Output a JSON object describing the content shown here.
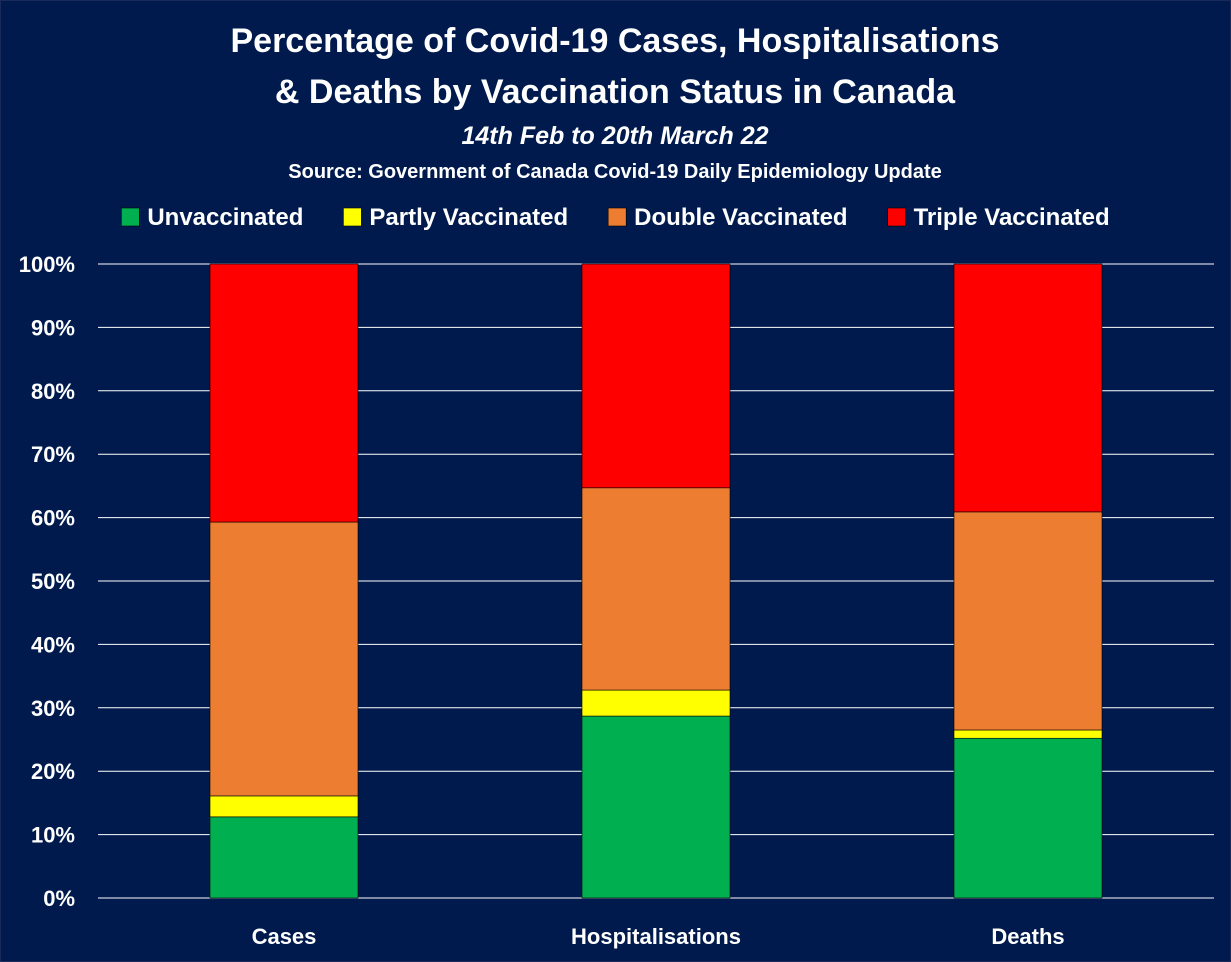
{
  "chart_data": {
    "type": "bar",
    "stacked": true,
    "title_lines": [
      "Percentage of Covid-19 Cases, Hospitalisations",
      "& Deaths by Vaccination Status in Canada"
    ],
    "subtitle": "14th Feb to 20th March 22",
    "source": "Source: Government of Canada  Covid-19 Daily Epidemiology Update",
    "categories": [
      "Cases",
      "Hospitalisations",
      "Deaths"
    ],
    "series": [
      {
        "name": "Unvaccinated",
        "color": "#00b050",
        "values": [
          12.8,
          28.7,
          25.2
        ]
      },
      {
        "name": "Partly Vaccinated",
        "color": "#ffff00",
        "values": [
          3.3,
          4.1,
          1.3
        ]
      },
      {
        "name": "Double Vaccinated",
        "color": "#ed7d31",
        "values": [
          43.2,
          31.9,
          34.4
        ]
      },
      {
        "name": "Triple Vaccinated",
        "color": "#ff0000",
        "values": [
          40.7,
          35.3,
          39.1
        ]
      }
    ],
    "ylim": [
      0,
      100
    ],
    "yticks": [
      0,
      10,
      20,
      30,
      40,
      50,
      60,
      70,
      80,
      90,
      100
    ],
    "ytick_labels": [
      "0%",
      "10%",
      "20%",
      "30%",
      "40%",
      "50%",
      "60%",
      "70%",
      "80%",
      "90%",
      "100%"
    ],
    "xlabel": "",
    "ylabel": "",
    "grid": true,
    "legend_position": "top"
  },
  "colors": {
    "background": "#001a4d",
    "border": "#1b2a5a",
    "gridline": "#ffffff",
    "text": "#ffffff"
  }
}
